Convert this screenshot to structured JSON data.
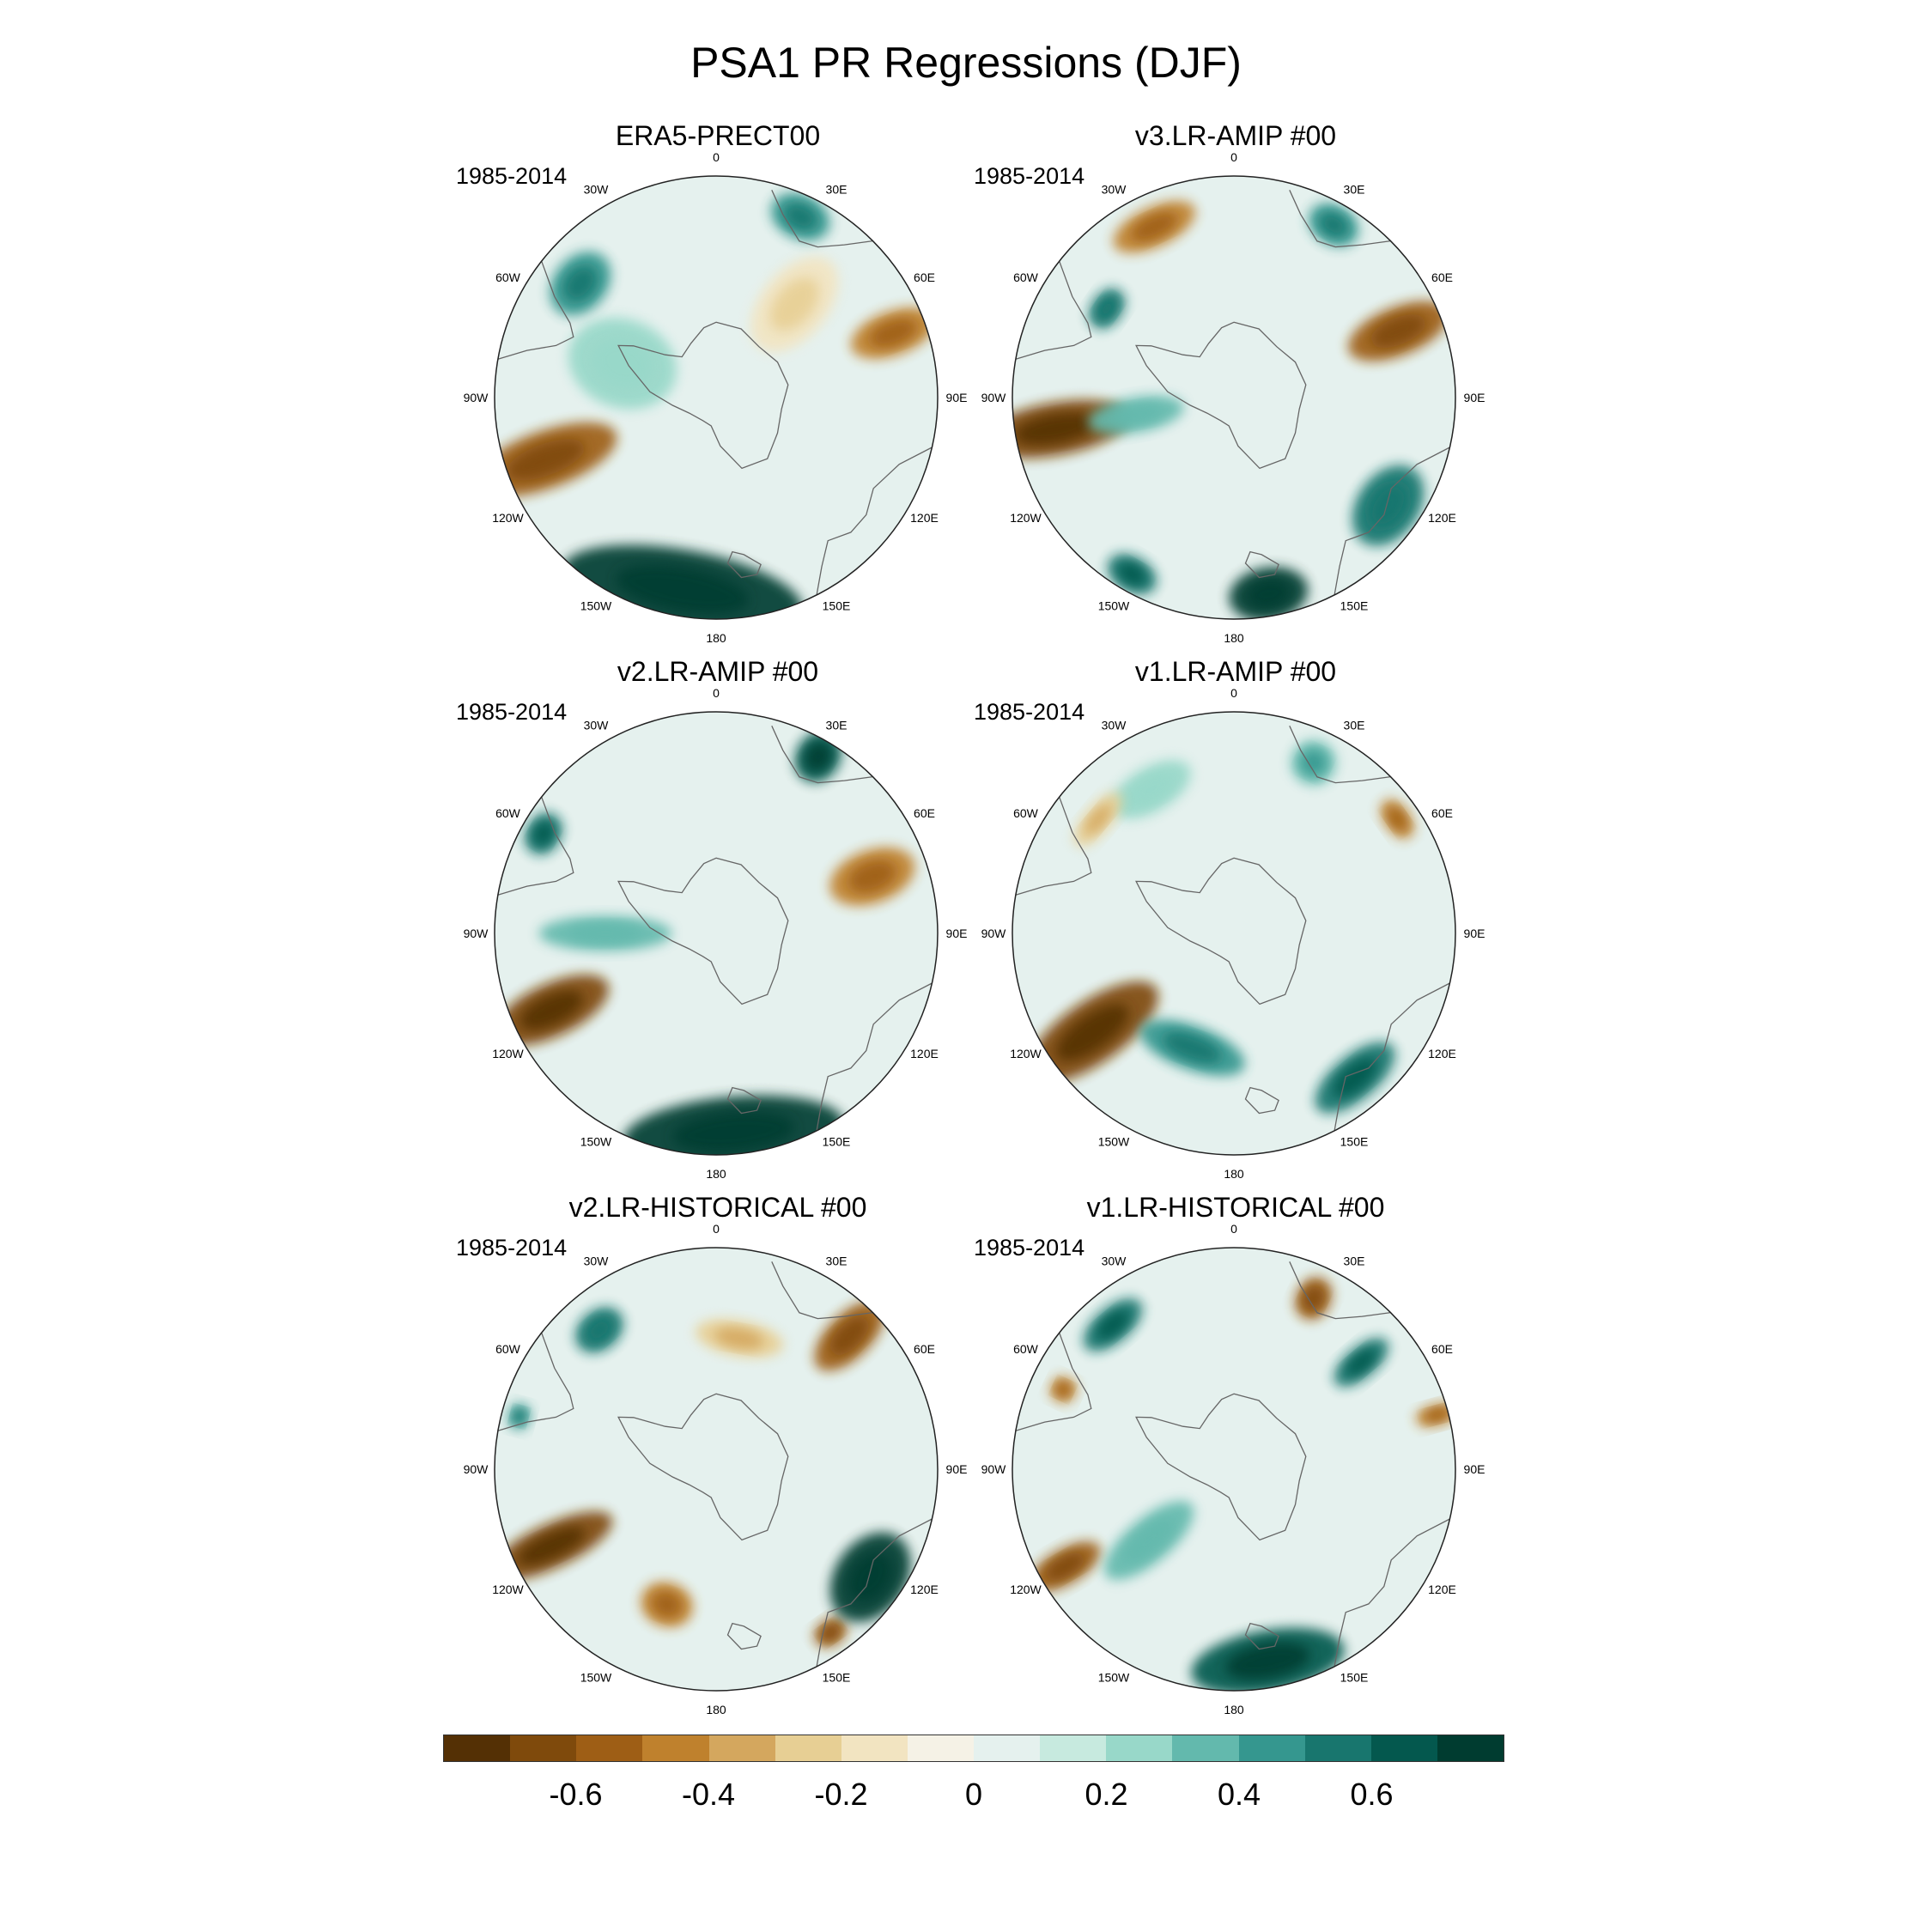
{
  "title": "PSA1 PR Regressions (DJF)",
  "longitude_labels": [
    "0",
    "30E",
    "60E",
    "90E",
    "120E",
    "150E",
    "180",
    "150W",
    "120W",
    "90W",
    "60W",
    "30W"
  ],
  "panels": [
    {
      "title": "ERA5-PRECT00",
      "period": "1985-2014",
      "anomalies": [
        {
          "lon": -110,
          "colat": 0.82,
          "val": -0.6,
          "rx": 0.13,
          "ry": 0.34
        },
        {
          "lon": 70,
          "colat": 0.85,
          "val": -0.5,
          "rx": 0.1,
          "ry": 0.2
        },
        {
          "lon": -170,
          "colat": 0.88,
          "val": 0.8,
          "rx": 0.55,
          "ry": 0.18
        },
        {
          "lon": -50,
          "colat": 0.8,
          "val": 0.45,
          "rx": 0.16,
          "ry": 0.12
        },
        {
          "lon": 25,
          "colat": 0.9,
          "val": 0.45,
          "rx": 0.14,
          "ry": 0.1
        },
        {
          "lon": -70,
          "colat": 0.45,
          "val": 0.25,
          "rx": 0.2,
          "ry": 0.25
        },
        {
          "lon": 40,
          "colat": 0.55,
          "val": -0.2,
          "rx": 0.15,
          "ry": 0.25
        }
      ]
    },
    {
      "title": "v3.LR-AMIP  #00",
      "period": "1985-2014",
      "anomalies": [
        {
          "lon": -100,
          "colat": 0.82,
          "val": -0.65,
          "rx": 0.12,
          "ry": 0.34
        },
        {
          "lon": 68,
          "colat": 0.8,
          "val": -0.6,
          "rx": 0.11,
          "ry": 0.24
        },
        {
          "lon": -25,
          "colat": 0.85,
          "val": -0.45,
          "rx": 0.2,
          "ry": 0.09
        },
        {
          "lon": 170,
          "colat": 0.9,
          "val": 0.75,
          "rx": 0.18,
          "ry": 0.12
        },
        {
          "lon": -150,
          "colat": 0.92,
          "val": 0.6,
          "rx": 0.12,
          "ry": 0.08
        },
        {
          "lon": 125,
          "colat": 0.85,
          "val": 0.5,
          "rx": 0.2,
          "ry": 0.14
        },
        {
          "lon": -55,
          "colat": 0.7,
          "val": 0.5,
          "rx": 0.1,
          "ry": 0.07
        },
        {
          "lon": 30,
          "colat": 0.9,
          "val": 0.45,
          "rx": 0.12,
          "ry": 0.09
        },
        {
          "lon": -100,
          "colat": 0.45,
          "val": 0.3,
          "rx": 0.08,
          "ry": 0.22
        }
      ]
    },
    {
      "title": "v2.LR-AMIP  #00",
      "period": "1985-2014",
      "anomalies": [
        {
          "lon": -115,
          "colat": 0.82,
          "val": -0.65,
          "rx": 0.12,
          "ry": 0.28
        },
        {
          "lon": 70,
          "colat": 0.75,
          "val": -0.45,
          "rx": 0.12,
          "ry": 0.2
        },
        {
          "lon": 175,
          "colat": 0.9,
          "val": 0.75,
          "rx": 0.5,
          "ry": 0.16
        },
        {
          "lon": 30,
          "colat": 0.92,
          "val": 0.65,
          "rx": 0.1,
          "ry": 0.12
        },
        {
          "lon": -60,
          "colat": 0.9,
          "val": 0.6,
          "rx": 0.1,
          "ry": 0.08
        },
        {
          "lon": -90,
          "colat": 0.5,
          "val": 0.3,
          "rx": 0.08,
          "ry": 0.3
        }
      ]
    },
    {
      "title": "v1.LR-AMIP  #00",
      "period": "1985-2014",
      "anomalies": [
        {
          "lon": -125,
          "colat": 0.78,
          "val": -0.65,
          "rx": 0.14,
          "ry": 0.35
        },
        {
          "lon": 55,
          "colat": 0.9,
          "val": -0.5,
          "rx": 0.1,
          "ry": 0.06
        },
        {
          "lon": 140,
          "colat": 0.85,
          "val": 0.6,
          "rx": 0.22,
          "ry": 0.1
        },
        {
          "lon": -160,
          "colat": 0.55,
          "val": 0.45,
          "rx": 0.25,
          "ry": 0.1
        },
        {
          "lon": 25,
          "colat": 0.85,
          "val": 0.35,
          "rx": 0.1,
          "ry": 0.1
        },
        {
          "lon": -30,
          "colat": 0.75,
          "val": 0.25,
          "rx": 0.2,
          "ry": 0.1
        },
        {
          "lon": -50,
          "colat": 0.8,
          "val": -0.3,
          "rx": 0.15,
          "ry": 0.06
        }
      ]
    },
    {
      "title": "v2.LR-HISTORICAL  #00",
      "period": "1985-2014",
      "anomalies": [
        {
          "lon": -115,
          "colat": 0.82,
          "val": -0.65,
          "rx": 0.1,
          "ry": 0.3
        },
        {
          "lon": 45,
          "colat": 0.85,
          "val": -0.55,
          "rx": 0.1,
          "ry": 0.2
        },
        {
          "lon": -160,
          "colat": 0.65,
          "val": -0.45,
          "rx": 0.12,
          "ry": 0.1
        },
        {
          "lon": 145,
          "colat": 0.9,
          "val": -0.55,
          "rx": 0.08,
          "ry": 0.06
        },
        {
          "lon": 125,
          "colat": 0.85,
          "val": 0.75,
          "rx": 0.22,
          "ry": 0.16
        },
        {
          "lon": -40,
          "colat": 0.82,
          "val": 0.5,
          "rx": 0.12,
          "ry": 0.09
        },
        {
          "lon": -75,
          "colat": 0.92,
          "val": 0.45,
          "rx": 0.06,
          "ry": 0.05
        },
        {
          "lon": 10,
          "colat": 0.6,
          "val": -0.3,
          "rx": 0.2,
          "ry": 0.08
        }
      ]
    },
    {
      "title": "v1.LR-HISTORICAL  #00",
      "period": "1985-2014",
      "anomalies": [
        {
          "lon": 170,
          "colat": 0.88,
          "val": 0.65,
          "rx": 0.35,
          "ry": 0.14
        },
        {
          "lon": -40,
          "colat": 0.85,
          "val": 0.6,
          "rx": 0.16,
          "ry": 0.08
        },
        {
          "lon": 50,
          "colat": 0.75,
          "val": 0.6,
          "rx": 0.07,
          "ry": 0.15
        },
        {
          "lon": 25,
          "colat": 0.85,
          "val": -0.55,
          "rx": 0.08,
          "ry": 0.1
        },
        {
          "lon": -120,
          "colat": 0.88,
          "val": -0.55,
          "rx": 0.08,
          "ry": 0.18
        },
        {
          "lon": -65,
          "colat": 0.85,
          "val": -0.5,
          "rx": 0.06,
          "ry": 0.06
        },
        {
          "lon": 75,
          "colat": 0.95,
          "val": -0.5,
          "rx": 0.05,
          "ry": 0.1
        },
        {
          "lon": -130,
          "colat": 0.5,
          "val": 0.3,
          "rx": 0.1,
          "ry": 0.25
        }
      ]
    }
  ],
  "colorbar": {
    "colors": [
      "#543005",
      "#7f4a0c",
      "#9e5e15",
      "#bf812d",
      "#d4a75e",
      "#e7cf94",
      "#f2e4c1",
      "#f5f2e6",
      "#e5f1ee",
      "#c7eadf",
      "#98d8c9",
      "#63b9ad",
      "#35978f",
      "#18766e",
      "#04584e",
      "#003c30"
    ],
    "tick_values": [
      -0.6,
      -0.4,
      -0.2,
      0,
      0.2,
      0.4,
      0.6
    ],
    "tick_labels": [
      "-0.6",
      "-0.4",
      "-0.2",
      "0",
      "0.2",
      "0.4",
      "0.6"
    ],
    "min": -0.8,
    "max": 0.8
  }
}
